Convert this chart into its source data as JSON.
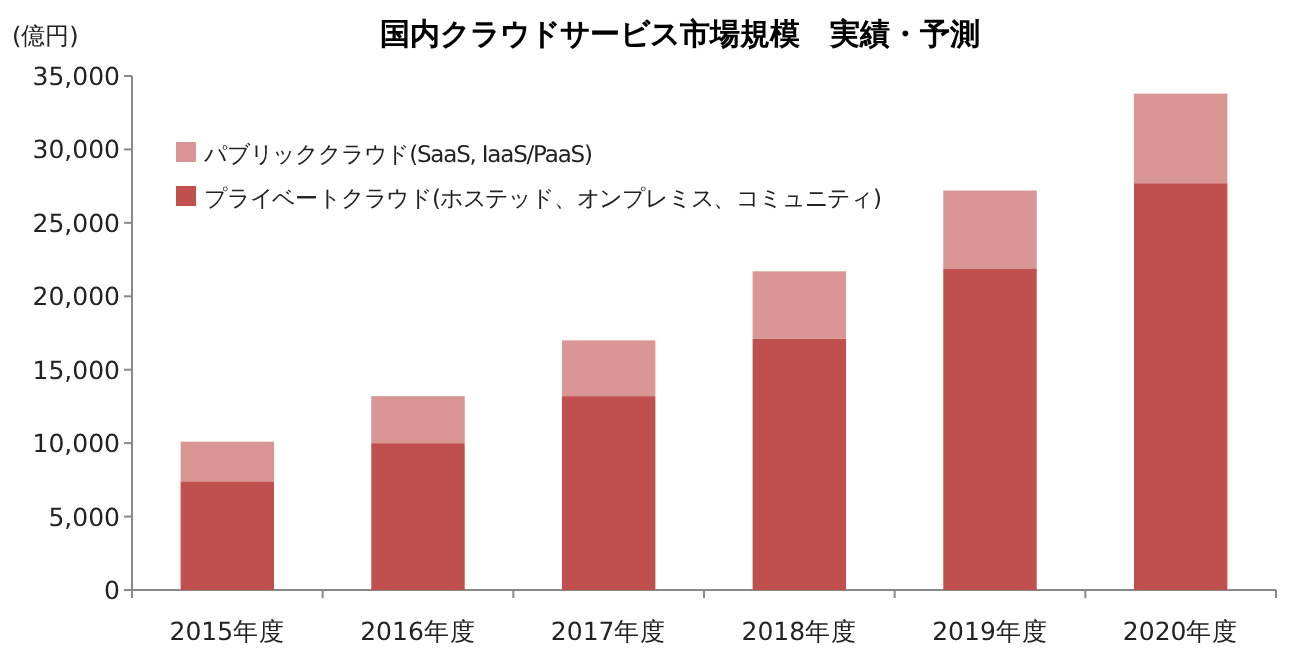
{
  "chart_data": {
    "type": "bar",
    "title": "国内クラウドサービス市場規模　実績・予測",
    "ylabel": "(億円)",
    "categories": [
      "2015年度",
      "2016年度",
      "2017年度",
      "2018年度",
      "2019年度",
      "2020年度"
    ],
    "stacked": true,
    "series": [
      {
        "name": "プライベートクラウド(ホステッド、オンプレミス、コミュニティ)",
        "color": "#c0504d",
        "values": [
          7400,
          10000,
          13200,
          17100,
          21900,
          27700
        ]
      },
      {
        "name": "パブリッククラウド(SaaS, IaaS/PaaS)",
        "color": "#d99694",
        "values": [
          2700,
          3200,
          3800,
          4600,
          5300,
          6100
        ]
      }
    ],
    "ylim": [
      0,
      35000
    ],
    "yticks": [
      {
        "value": 0,
        "label": "0"
      },
      {
        "value": 5000,
        "label": "5,000"
      },
      {
        "value": 10000,
        "label": "10,000"
      },
      {
        "value": 15000,
        "label": "15,000"
      },
      {
        "value": 20000,
        "label": "20,000"
      },
      {
        "value": 25000,
        "label": "25,000"
      },
      {
        "value": 30000,
        "label": "30,000"
      },
      {
        "value": 35000,
        "label": "35,000"
      }
    ],
    "grid": false,
    "legend": "top left"
  }
}
